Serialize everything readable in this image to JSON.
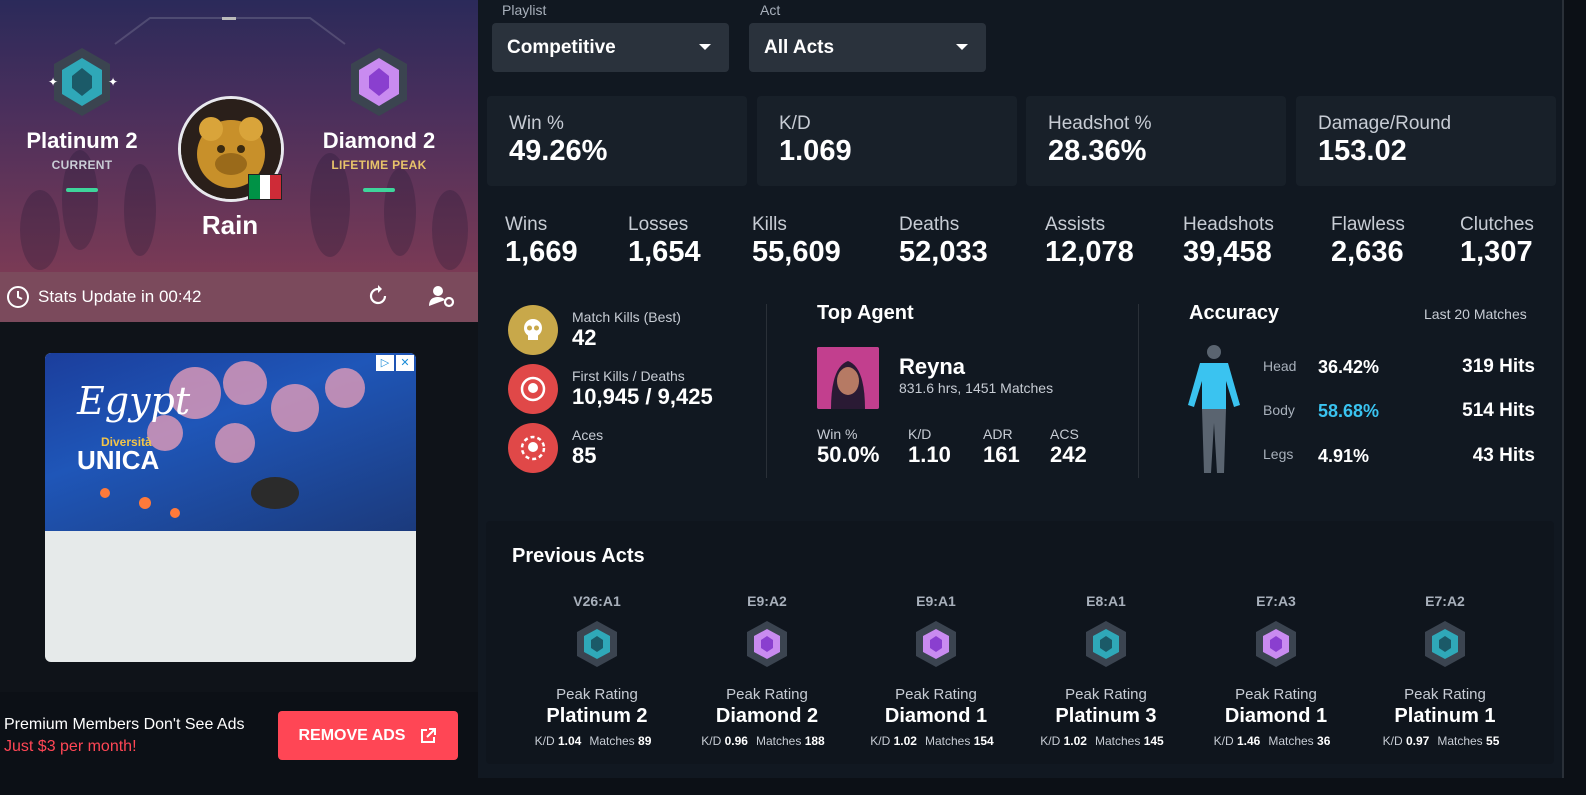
{
  "profile": {
    "current_rank": "Platinum 2",
    "current_label": "CURRENT",
    "peak_rank": "Diamond 2",
    "peak_label": "LIFETIME PEAK",
    "player_name": "Rain",
    "stats_update": "Stats Update in 00:42"
  },
  "ad": {
    "egypt": "Egypt",
    "diversita": "Diversità",
    "unica": "UNICA"
  },
  "premium": {
    "line1": "Premium Members Don't See Ads",
    "line2": "Just $3 per month!",
    "remove_ads": "REMOVE ADS"
  },
  "filters": {
    "playlist_label": "Playlist",
    "playlist_value": "Competitive",
    "act_label": "Act",
    "act_value": "All Acts"
  },
  "cards": [
    {
      "label": "Win %",
      "value": "49.26%"
    },
    {
      "label": "K/D",
      "value": "1.069"
    },
    {
      "label": "Headshot %",
      "value": "28.36%"
    },
    {
      "label": "Damage/Round",
      "value": "153.02"
    }
  ],
  "bigstats": [
    {
      "label": "Wins",
      "value": "1,669"
    },
    {
      "label": "Losses",
      "value": "1,654"
    },
    {
      "label": "Kills",
      "value": "55,609"
    },
    {
      "label": "Deaths",
      "value": "52,033"
    },
    {
      "label": "Assists",
      "value": "12,078"
    },
    {
      "label": "Headshots",
      "value": "39,458"
    },
    {
      "label": "Flawless",
      "value": "2,636"
    },
    {
      "label": "Clutches",
      "value": "1,307"
    }
  ],
  "mini": [
    {
      "label": "Match Kills (Best)",
      "value": "42"
    },
    {
      "label": "First Kills / Deaths",
      "value": "10,945 / 9,425"
    },
    {
      "label": "Aces",
      "value": "85"
    }
  ],
  "top_agent": {
    "title": "Top Agent",
    "name": "Reyna",
    "sub": "831.6 hrs, 1451 Matches",
    "stats": [
      {
        "label": "Win %",
        "value": "50.0%"
      },
      {
        "label": "K/D",
        "value": "1.10"
      },
      {
        "label": "ADR",
        "value": "161"
      },
      {
        "label": "ACS",
        "value": "242"
      }
    ]
  },
  "accuracy": {
    "title": "Accuracy",
    "period": "Last 20 Matches",
    "rows": [
      {
        "label": "Head",
        "pct": "36.42%",
        "hits": "319 Hits"
      },
      {
        "label": "Body",
        "pct": "58.68%",
        "hits": "514 Hits"
      },
      {
        "label": "Legs",
        "pct": "4.91%",
        "hits": "43 Hits"
      }
    ],
    "highlight_color": "#3ac3f0"
  },
  "previous_acts": {
    "title": "Previous Acts",
    "peak_label": "Peak Rating",
    "kd_label": "K/D",
    "matches_label": "Matches",
    "acts": [
      {
        "code": "V26:A1",
        "rank": "Platinum 2",
        "kd": "1.04",
        "matches": "89",
        "tier": "platinum"
      },
      {
        "code": "E9:A2",
        "rank": "Diamond 2",
        "kd": "0.96",
        "matches": "188",
        "tier": "diamond"
      },
      {
        "code": "E9:A1",
        "rank": "Diamond 1",
        "kd": "1.02",
        "matches": "154",
        "tier": "diamond"
      },
      {
        "code": "E8:A1",
        "rank": "Platinum 3",
        "kd": "1.02",
        "matches": "145",
        "tier": "platinum"
      },
      {
        "code": "E7:A3",
        "rank": "Diamond 1",
        "kd": "1.46",
        "matches": "36",
        "tier": "diamond"
      },
      {
        "code": "E7:A2",
        "rank": "Platinum 1",
        "kd": "0.97",
        "matches": "55",
        "tier": "platinum"
      }
    ]
  },
  "colors": {
    "accent_red": "#ff4655",
    "gold": "#c8a84a",
    "platinum": "#3fb8c6",
    "diamond": "#b86ee8"
  }
}
